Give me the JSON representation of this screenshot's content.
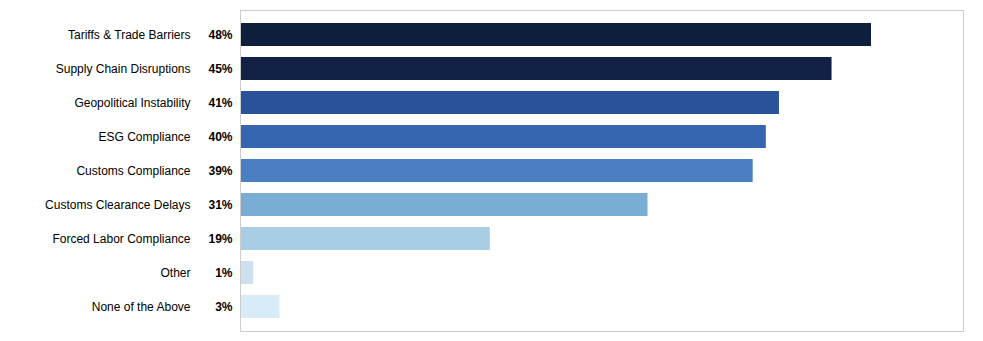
{
  "chart_data": {
    "type": "bar",
    "orientation": "horizontal",
    "categories": [
      "Tariffs & Trade Barriers",
      "Supply Chain Disruptions",
      "Geopolitical Instability",
      "ESG Compliance",
      "Customs Compliance",
      "Customs Clearance Delays",
      "Forced Labor Compliance",
      "Other",
      "None of the Above"
    ],
    "values": [
      48,
      45,
      41,
      40,
      39,
      31,
      19,
      1,
      3
    ],
    "value_labels": [
      "48%",
      "45%",
      "41%",
      "40%",
      "39%",
      "31%",
      "19%",
      "1%",
      "3%"
    ],
    "colors": [
      "#0d1f3c",
      "#112244",
      "#2a5298",
      "#3666b0",
      "#4a7fc1",
      "#7aadd4",
      "#a8cde4",
      "#cce0f0",
      "#d8ecf7"
    ],
    "xlim": [
      0,
      55
    ],
    "data_labels": true,
    "tick_labels": "y",
    "grid": false
  }
}
